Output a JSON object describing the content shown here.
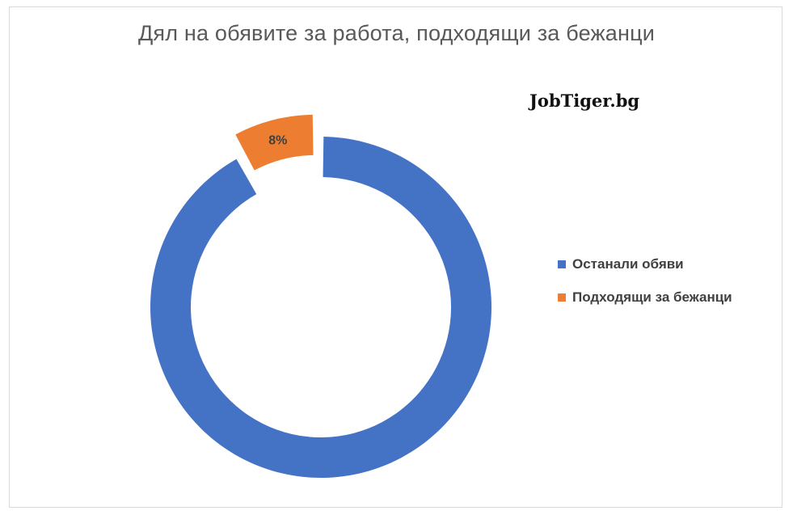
{
  "chart_data": {
    "type": "pie",
    "style": "doughnut",
    "title": "Дял на обявите за работа, подходящи за бежанци",
    "brand": "JobTiger.bg",
    "legend_position": "right",
    "series": [
      {
        "name": "Останали обяви",
        "value": 92,
        "color": "#4472c4",
        "data_label": ""
      },
      {
        "name": "Подходящи за бежанци",
        "value": 8,
        "color": "#ed7d31",
        "data_label": "8%"
      }
    ]
  }
}
